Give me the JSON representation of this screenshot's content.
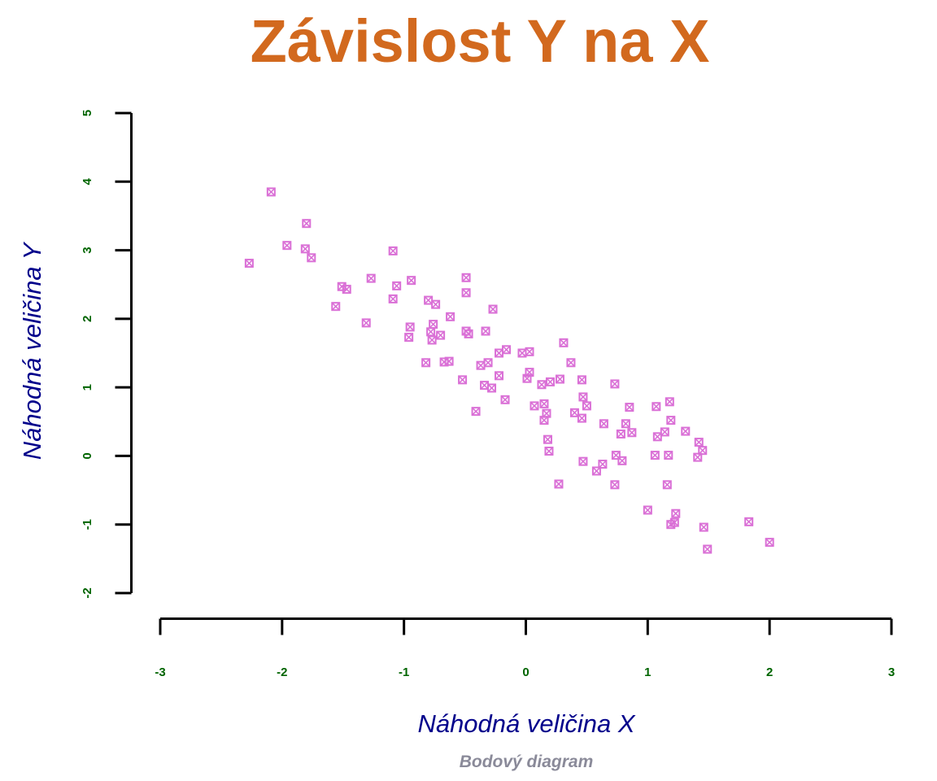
{
  "chart_data": {
    "type": "scatter",
    "title": "Závislost Y na X",
    "xlabel": "Náhodná veličina X",
    "ylabel": "Náhodná veličina Y",
    "subtitle": "Bodový diagram",
    "xlim": [
      -3,
      3
    ],
    "ylim": [
      -2,
      5
    ],
    "xticks": [
      -3,
      -2,
      -1,
      0,
      1,
      2,
      3
    ],
    "yticks": [
      -2,
      -1,
      0,
      1,
      2,
      3,
      4,
      5
    ],
    "grid": false,
    "legend": false,
    "marker": {
      "shape": "square-cross",
      "color": "#DA70D6",
      "size": 11
    },
    "colors": {
      "title": "#D2691E",
      "axis_label": "#00008B",
      "tick_label": "#006400",
      "axis_line": "#000000",
      "subtitle": "#8A8A99"
    },
    "points": [
      [
        -2.09,
        3.85
      ],
      [
        -1.8,
        3.39
      ],
      [
        -1.96,
        3.07
      ],
      [
        -1.81,
        3.02
      ],
      [
        -1.76,
        2.89
      ],
      [
        -2.27,
        2.81
      ],
      [
        -1.09,
        2.99
      ],
      [
        -1.27,
        2.59
      ],
      [
        -1.51,
        2.47
      ],
      [
        -1.47,
        2.43
      ],
      [
        -1.06,
        2.48
      ],
      [
        -0.94,
        2.56
      ],
      [
        -1.09,
        2.29
      ],
      [
        -0.49,
        2.6
      ],
      [
        -0.49,
        2.38
      ],
      [
        -1.56,
        2.18
      ],
      [
        -1.31,
        1.94
      ],
      [
        -0.8,
        2.27
      ],
      [
        -0.74,
        2.21
      ],
      [
        -0.27,
        2.14
      ],
      [
        -0.62,
        2.03
      ],
      [
        -0.76,
        1.92
      ],
      [
        -0.95,
        1.88
      ],
      [
        -0.96,
        1.73
      ],
      [
        -0.78,
        1.81
      ],
      [
        -0.77,
        1.69
      ],
      [
        -0.7,
        1.76
      ],
      [
        -0.49,
        1.82
      ],
      [
        -0.47,
        1.78
      ],
      [
        -0.33,
        1.82
      ],
      [
        0.31,
        1.65
      ],
      [
        -0.22,
        1.5
      ],
      [
        -0.16,
        1.55
      ],
      [
        -0.03,
        1.5
      ],
      [
        0.03,
        1.52
      ],
      [
        -0.82,
        1.36
      ],
      [
        -0.67,
        1.37
      ],
      [
        -0.63,
        1.38
      ],
      [
        0.37,
        1.36
      ],
      [
        -0.37,
        1.32
      ],
      [
        -0.31,
        1.36
      ],
      [
        -0.22,
        1.17
      ],
      [
        0.03,
        1.22
      ],
      [
        0.01,
        1.13
      ],
      [
        -0.52,
        1.11
      ],
      [
        0.13,
        1.04
      ],
      [
        0.2,
        1.08
      ],
      [
        0.28,
        1.12
      ],
      [
        0.46,
        1.11
      ],
      [
        -0.34,
        1.03
      ],
      [
        -0.28,
        0.99
      ],
      [
        -0.17,
        0.82
      ],
      [
        -0.41,
        0.65
      ],
      [
        0.47,
        0.86
      ],
      [
        0.07,
        0.73
      ],
      [
        0.15,
        0.76
      ],
      [
        0.17,
        0.62
      ],
      [
        0.15,
        0.52
      ],
      [
        0.5,
        0.73
      ],
      [
        0.4,
        0.63
      ],
      [
        0.46,
        0.55
      ],
      [
        0.73,
        1.05
      ],
      [
        0.85,
        0.71
      ],
      [
        1.07,
        0.72
      ],
      [
        1.18,
        0.79
      ],
      [
        0.64,
        0.47
      ],
      [
        1.19,
        0.52
      ],
      [
        0.82,
        0.47
      ],
      [
        0.78,
        0.32
      ],
      [
        0.87,
        0.34
      ],
      [
        1.08,
        0.28
      ],
      [
        1.14,
        0.35
      ],
      [
        1.31,
        0.36
      ],
      [
        1.42,
        0.2
      ],
      [
        1.45,
        0.08
      ],
      [
        1.41,
        -0.02
      ],
      [
        1.06,
        0.01
      ],
      [
        1.17,
        0.01
      ],
      [
        0.74,
        0.01
      ],
      [
        0.79,
        -0.07
      ],
      [
        0.63,
        -0.12
      ],
      [
        0.58,
        -0.22
      ],
      [
        0.73,
        -0.42
      ],
      [
        1.16,
        -0.42
      ],
      [
        1.0,
        -0.79
      ],
      [
        1.23,
        -0.84
      ],
      [
        1.22,
        -0.97
      ],
      [
        1.19,
        -1.0
      ],
      [
        1.46,
        -1.04
      ],
      [
        1.83,
        -0.96
      ],
      [
        2.0,
        -1.26
      ],
      [
        1.49,
        -1.36
      ],
      [
        0.18,
        0.24
      ],
      [
        0.19,
        0.07
      ],
      [
        0.47,
        -0.08
      ],
      [
        0.27,
        -0.41
      ]
    ]
  }
}
